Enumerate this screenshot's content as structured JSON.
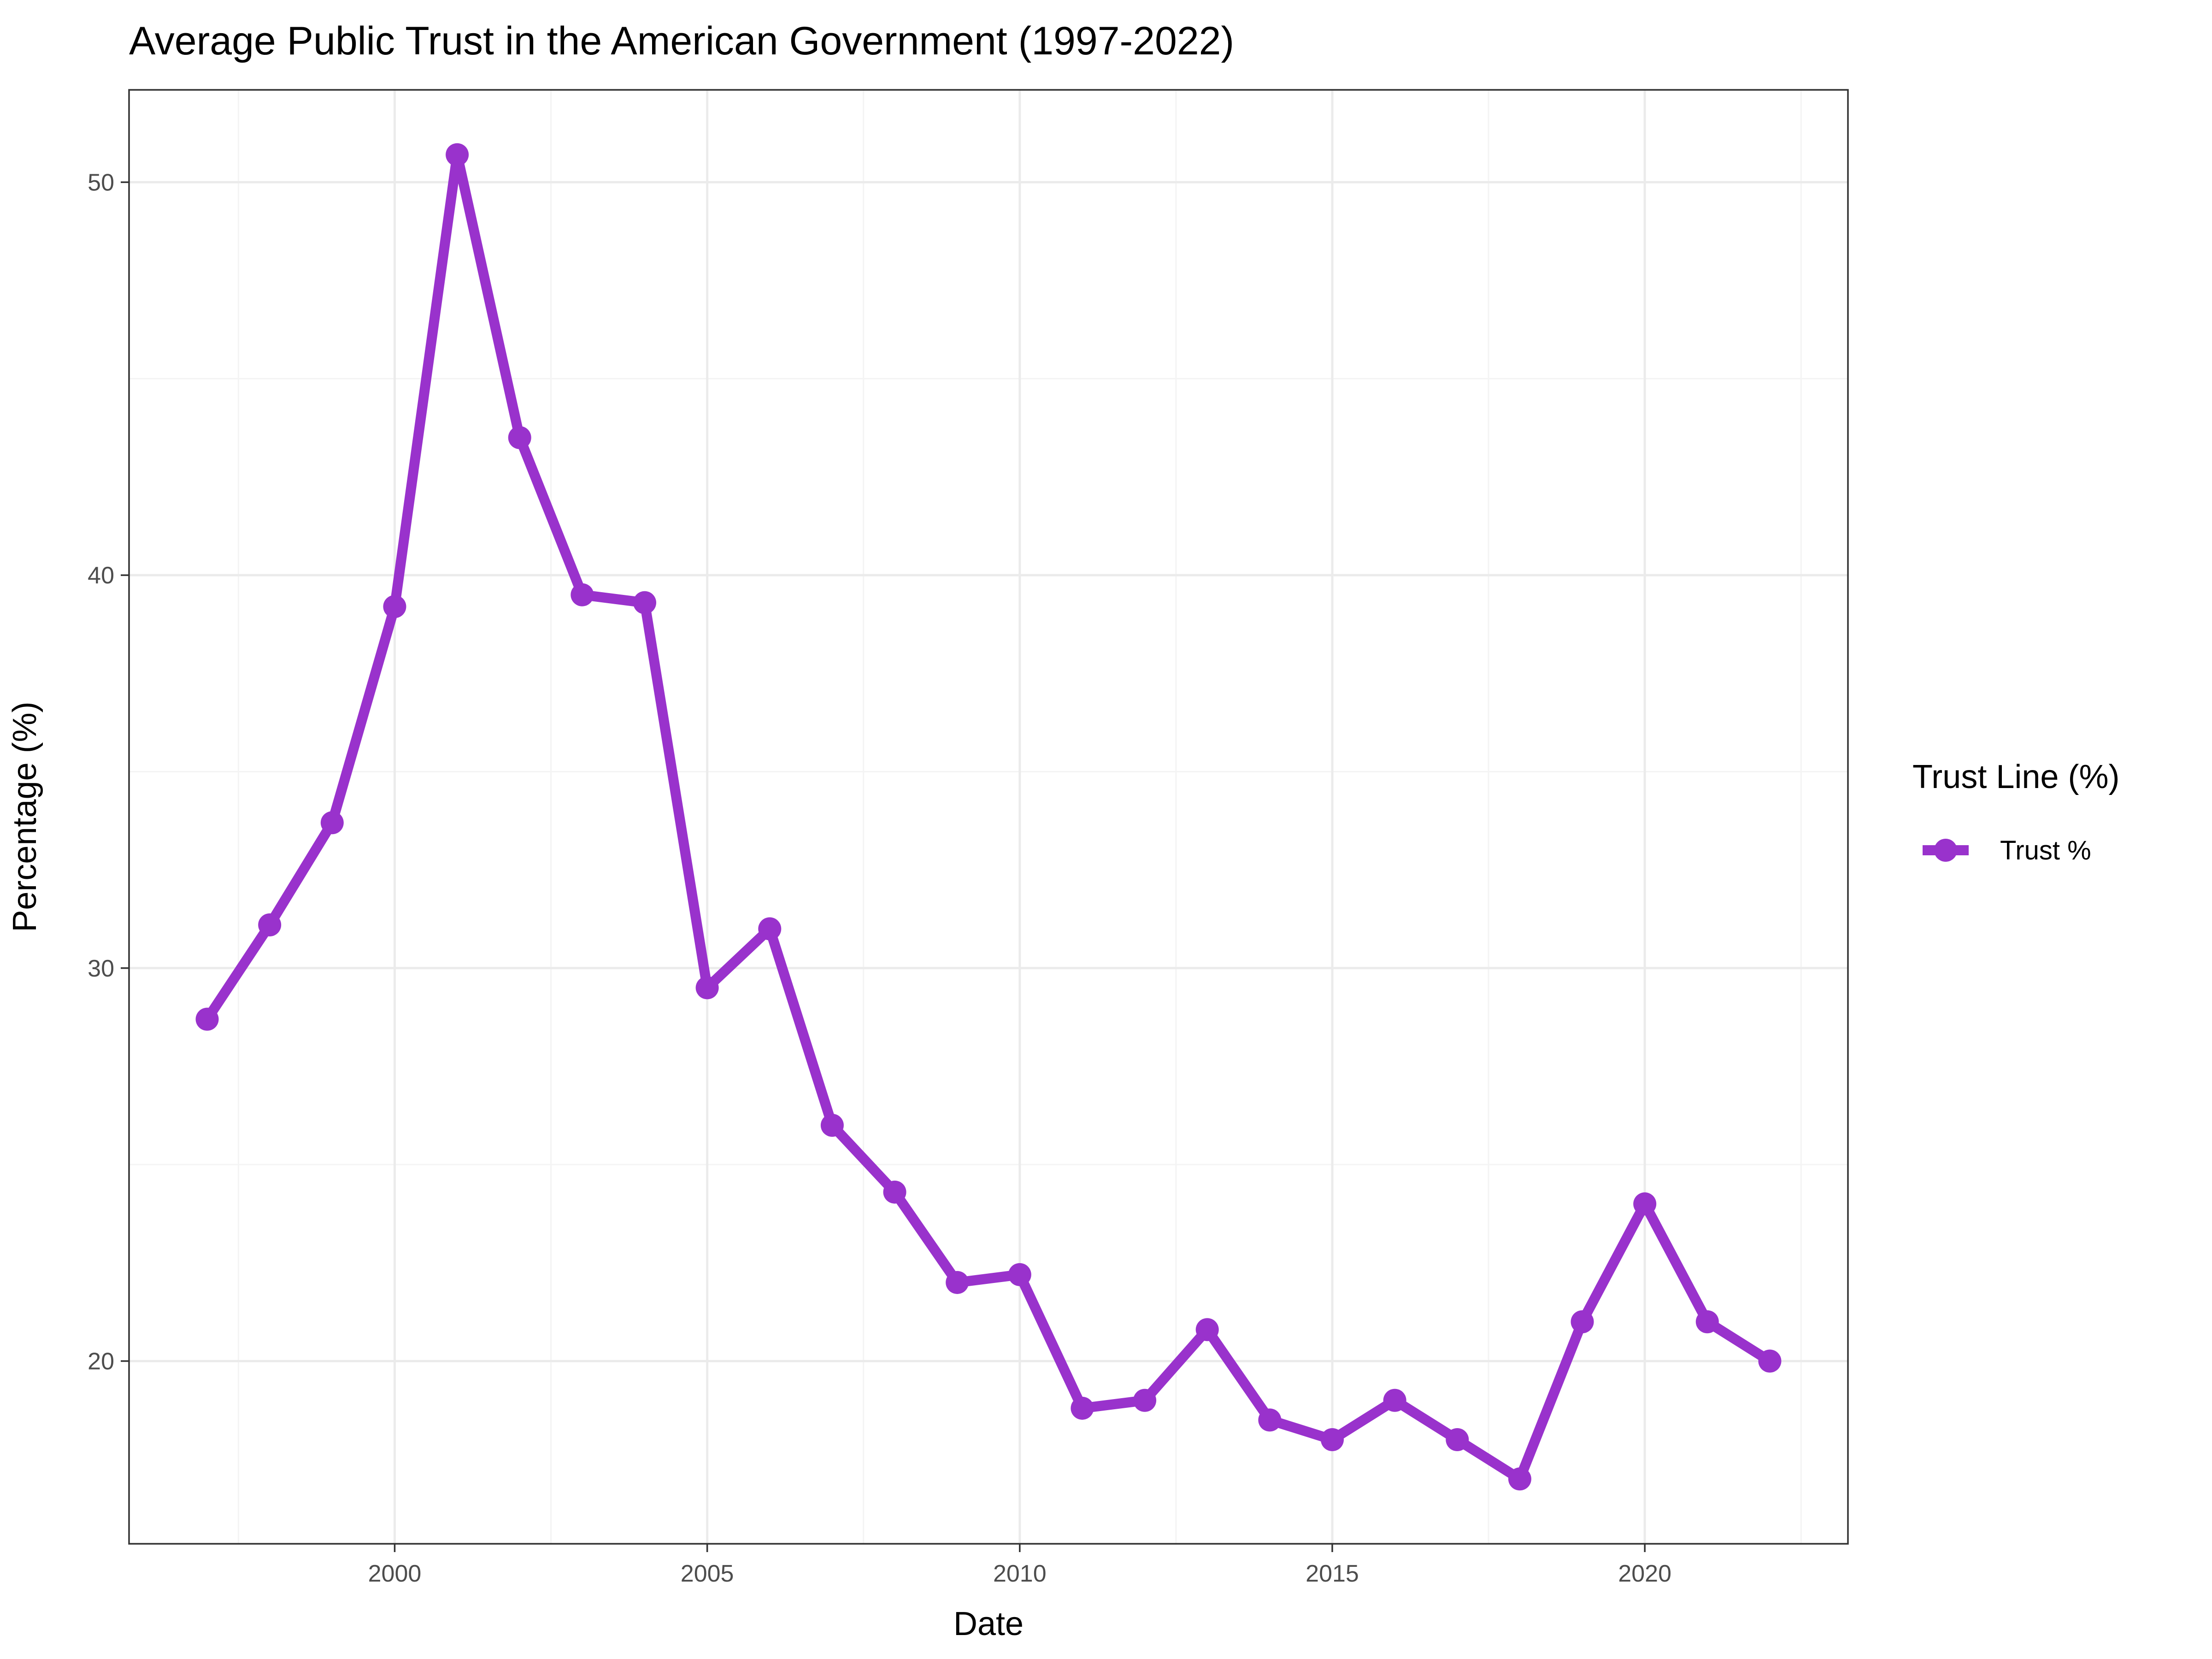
{
  "chart_data": {
    "type": "line",
    "title": "Average Public Trust in the American Government (1997-2022)",
    "xlabel": "Date",
    "ylabel": "Percentage (%)",
    "x": [
      1997,
      1998,
      1999,
      2000,
      2001,
      2002,
      2003,
      2004,
      2005,
      2006,
      2007,
      2008,
      2009,
      2010,
      2011,
      2012,
      2013,
      2014,
      2015,
      2016,
      2017,
      2018,
      2019,
      2020,
      2021,
      2022
    ],
    "series": [
      {
        "name": "Trust %",
        "values": [
          28.7,
          31.1,
          33.7,
          39.2,
          50.7,
          43.5,
          39.5,
          39.3,
          29.5,
          31.0,
          26.0,
          24.3,
          22.0,
          22.2,
          18.8,
          19.0,
          20.8,
          18.5,
          18.0,
          19.0,
          18.0,
          17.0,
          21.0,
          24.0,
          21.0,
          20.0
        ],
        "color": "#9932cc"
      }
    ],
    "xlim": [
      1995.75,
      2023.25
    ],
    "ylim": [
      15.35,
      52.35
    ],
    "x_ticks": [
      2000,
      2005,
      2010,
      2015,
      2020
    ],
    "x_tick_labels": [
      "2000",
      "2005",
      "2010",
      "2015",
      "2020"
    ],
    "x_minor_ticks": [
      1997.5,
      2002.5,
      2007.5,
      2012.5,
      2017.5,
      2022.5
    ],
    "y_ticks": [
      20,
      30,
      40,
      50
    ],
    "y_tick_labels": [
      "20",
      "30",
      "40",
      "50"
    ],
    "y_minor_ticks": [
      25,
      35,
      45
    ],
    "grid": true,
    "legend": {
      "title": "Trust Line (%)",
      "placement": "right",
      "entries": [
        "Trust %"
      ]
    }
  }
}
